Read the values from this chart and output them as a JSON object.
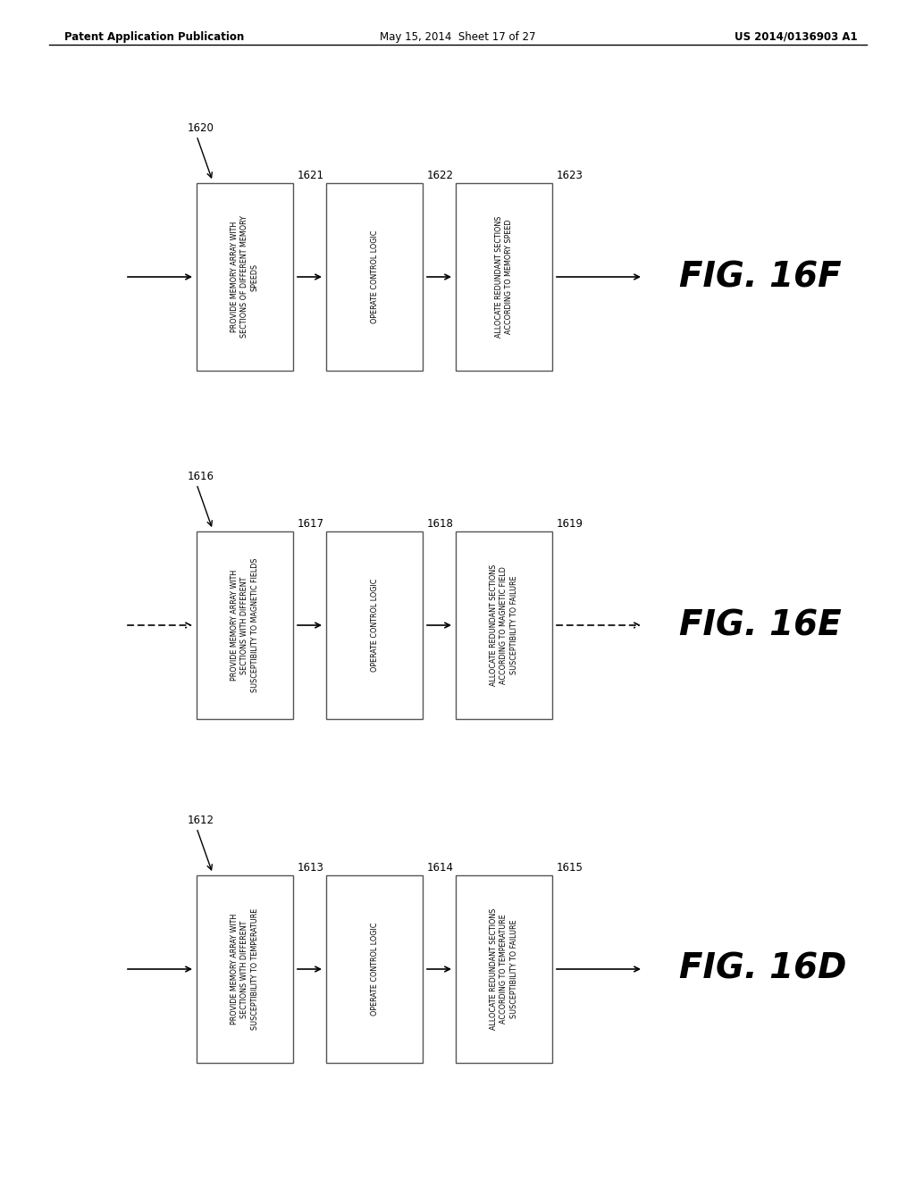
{
  "bg_color": "#ffffff",
  "header_left": "Patent Application Publication",
  "header_center": "May 15, 2014  Sheet 17 of 27",
  "header_right": "US 2014/0136903 A1",
  "diagrams": [
    {
      "fig_label": "FIG. 16F",
      "start_label": "1620",
      "arrow_dashed_in": false,
      "arrow_dashed_out": false,
      "boxes": [
        {
          "id": "1621",
          "text": "PROVIDE MEMORY ARRAY WITH\nSECTIONS OF DIFFERENT MEMORY\nSPEEDS"
        },
        {
          "id": "1622",
          "text": "OPERATE CONTROL LOGIC"
        },
        {
          "id": "1623",
          "text": "ALLOCATE REDUNDANT SECTIONS\nACCORDING TO MEMORY SPEED"
        }
      ]
    },
    {
      "fig_label": "FIG. 16E",
      "start_label": "1616",
      "arrow_dashed_in": true,
      "arrow_dashed_out": true,
      "boxes": [
        {
          "id": "1617",
          "text": "PROVIDE MEMORY ARRAY WITH\nSECTIONS WITH DIFFERENT\nSUSCEPTIBILITY TO MAGNETIC FIELDS"
        },
        {
          "id": "1618",
          "text": "OPERATE CONTROL LOGIC"
        },
        {
          "id": "1619",
          "text": "ALLOCATE REDUNDANT SECTIONS\nACCORDING TO MAGNETIC FIELD\nSUSCEPTIBILITY TO FAILURE"
        }
      ]
    },
    {
      "fig_label": "FIG. 16D",
      "start_label": "1612",
      "arrow_dashed_in": false,
      "arrow_dashed_out": false,
      "boxes": [
        {
          "id": "1613",
          "text": "PROVIDE MEMORY ARRAY WITH\nSECTIONS WITH DIFFERENT\nSUSCEPTIBILITY TO TEMPERATURE"
        },
        {
          "id": "1614",
          "text": "OPERATE CONTROL LOGIC"
        },
        {
          "id": "1615",
          "text": "ALLOCATE REDUNDANT SECTIONS\nACCORDING TO TEMPERATURE\nSUSCEPTIBILITY TO FAILURE"
        }
      ]
    }
  ]
}
